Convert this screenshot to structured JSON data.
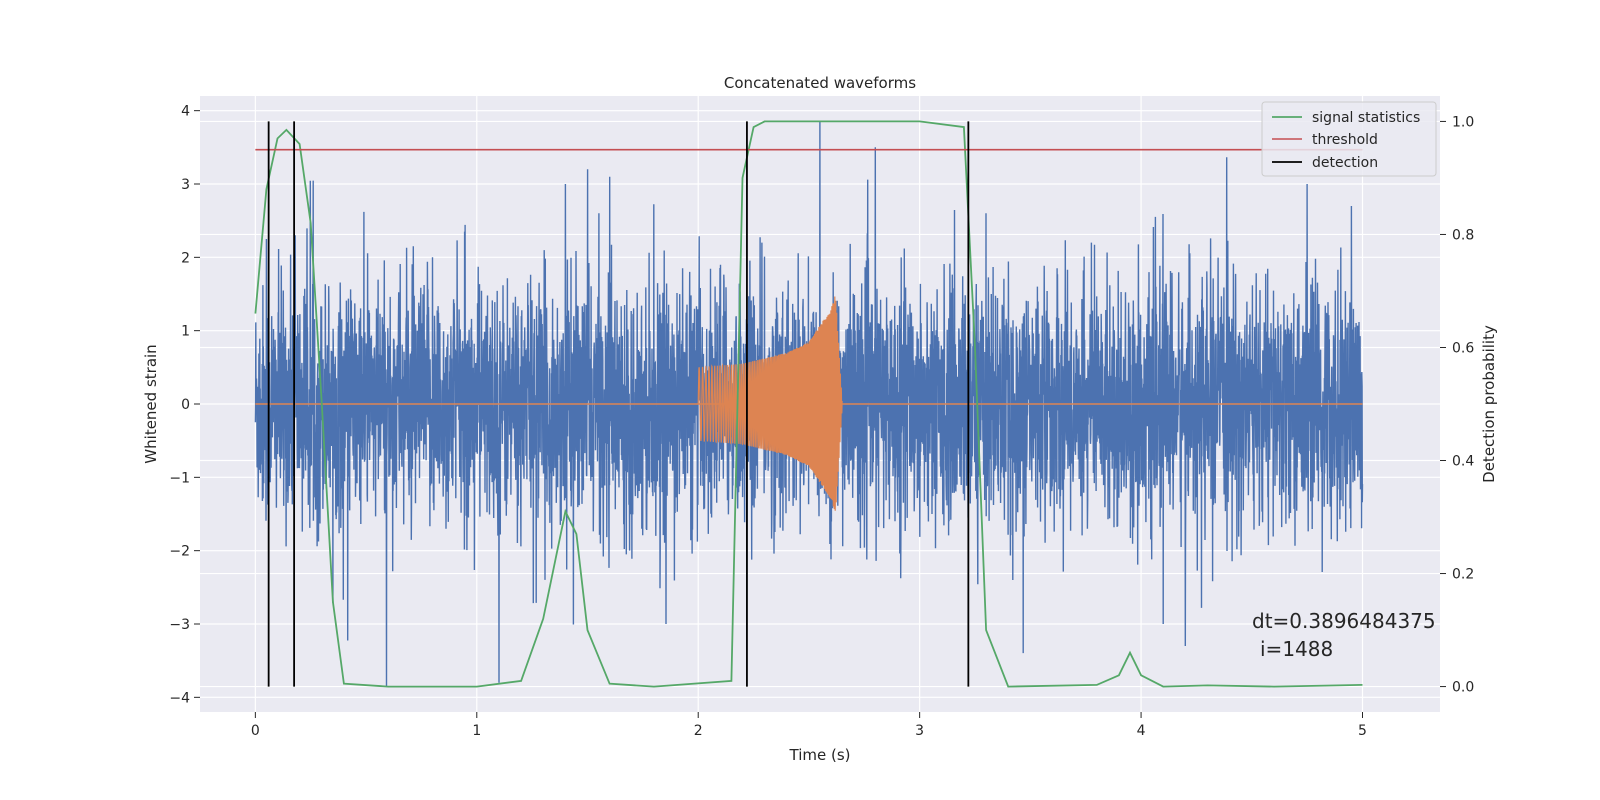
{
  "chart_data": {
    "type": "line",
    "title": "Concatenated waveforms",
    "xlabel": "Time (s)",
    "ylabel": "Whitened strain",
    "y2label": "Detection probability",
    "xlim": [
      -0.25,
      5.35
    ],
    "ylim": [
      -4.2,
      4.2
    ],
    "y2lim": [
      -0.045,
      1.045
    ],
    "x_ticks": [
      0,
      1,
      2,
      3,
      4,
      5
    ],
    "y_ticks": [
      -4,
      -3,
      -2,
      -1,
      0,
      1,
      2,
      3,
      4
    ],
    "y2_ticks": [
      0.0,
      0.2,
      0.4,
      0.6,
      0.8,
      1.0
    ],
    "y2_tick_labels": [
      "0.0",
      "0.2",
      "0.4",
      "0.6",
      "0.8",
      "1.0"
    ],
    "grid": true,
    "legend_position": "top-right",
    "colors": {
      "background": "#eaeaf2",
      "strain": "#4c72b0",
      "injection": "#dd8452",
      "signal_statistics": "#55a868",
      "threshold": "#c44e52",
      "detection": "#000000"
    },
    "series": [
      {
        "name": "",
        "role": "whitened strain (noise)",
        "axis": "left",
        "x_range": [
          0,
          5
        ],
        "typical_amplitude": 0.8,
        "max_abs": 3.85,
        "peaks": [
          [
            0.05,
            2.25
          ],
          [
            0.18,
            2.3
          ],
          [
            0.8,
            2.0
          ],
          [
            1.1,
            -3.8
          ],
          [
            1.4,
            3.0
          ],
          [
            1.5,
            3.2
          ],
          [
            1.6,
            3.1
          ],
          [
            2.1,
            1.9
          ],
          [
            2.55,
            3.85
          ],
          [
            2.8,
            3.5
          ],
          [
            3.3,
            2.6
          ],
          [
            4.1,
            -3.0
          ],
          [
            4.2,
            -3.3
          ],
          [
            4.75,
            3.0
          ],
          [
            4.95,
            2.7
          ]
        ]
      },
      {
        "name": "",
        "role": "injected chirp",
        "axis": "left",
        "x": [
          2.0,
          2.2,
          2.4,
          2.5,
          2.6,
          2.62,
          2.65
        ],
        "envelope": [
          0.5,
          0.55,
          0.7,
          0.85,
          1.3,
          1.5,
          0.05
        ]
      },
      {
        "name": "signal statistics",
        "axis": "right",
        "x": [
          0.0,
          0.05,
          0.1,
          0.14,
          0.2,
          0.25,
          0.3,
          0.35,
          0.4,
          0.6,
          1.0,
          1.2,
          1.3,
          1.4,
          1.45,
          1.5,
          1.6,
          1.8,
          2.15,
          2.2,
          2.25,
          2.3,
          2.5,
          3.0,
          3.2,
          3.25,
          3.3,
          3.4,
          3.8,
          3.9,
          3.95,
          4.0,
          4.1,
          4.3,
          4.6,
          5.0
        ],
        "y": [
          0.66,
          0.88,
          0.97,
          0.985,
          0.96,
          0.82,
          0.5,
          0.15,
          0.005,
          0.0,
          0.0,
          0.01,
          0.12,
          0.31,
          0.27,
          0.1,
          0.005,
          0.0,
          0.01,
          0.9,
          0.99,
          1.0,
          1.0,
          1.0,
          0.99,
          0.6,
          0.1,
          0.0,
          0.003,
          0.02,
          0.06,
          0.02,
          0.0,
          0.002,
          0.0,
          0.003
        ]
      },
      {
        "name": "threshold",
        "axis": "right",
        "x": [
          0.0,
          5.0
        ],
        "y": [
          0.95,
          0.95
        ]
      },
      {
        "name": "detection",
        "axis": "right",
        "x": [
          0.06,
          0.175,
          2.22,
          3.22
        ],
        "y_range": [
          0.0,
          1.0
        ]
      }
    ],
    "annotation": {
      "line1": "dt=0.3896484375",
      "line2": "i=1488"
    }
  }
}
